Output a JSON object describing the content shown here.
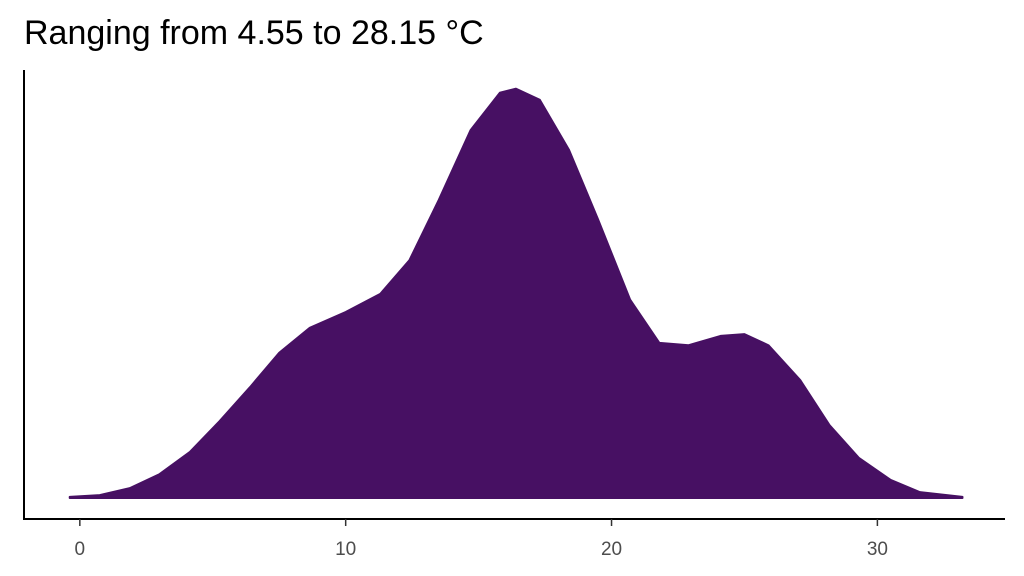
{
  "chart_data": {
    "type": "area",
    "title": "Ranging from 4.55 to 28.15 °C",
    "x": [
      -0.38,
      0.75,
      1.88,
      3.0,
      4.14,
      5.26,
      6.4,
      7.5,
      8.65,
      10.0,
      11.3,
      12.4,
      13.5,
      14.7,
      15.8,
      16.4,
      17.3,
      18.4,
      19.5,
      20.7,
      21.8,
      22.9,
      24.1,
      25.0,
      25.9,
      27.1,
      28.2,
      29.3,
      30.5,
      31.6,
      33.2
    ],
    "values": [
      0.0002,
      0.0005,
      0.0017,
      0.0041,
      0.0079,
      0.0132,
      0.019,
      0.0249,
      0.0292,
      0.0319,
      0.035,
      0.0408,
      0.0511,
      0.0631,
      0.0695,
      0.0702,
      0.0683,
      0.0597,
      0.0477,
      0.034,
      0.0266,
      0.0262,
      0.0278,
      0.0281,
      0.0262,
      0.0202,
      0.0125,
      0.0069,
      0.0031,
      0.001,
      0.0002
    ],
    "color": "#471063",
    "xlim": [
      -2.1,
      34.8
    ],
    "xticks": [
      0,
      10,
      20,
      30
    ],
    "ylim": [
      -0.0036,
      0.0734
    ]
  }
}
